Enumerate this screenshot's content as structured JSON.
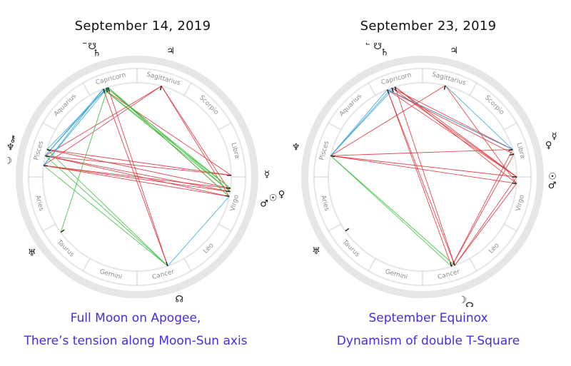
{
  "zodiac_signs": [
    "Aries",
    "Taurus",
    "Gemini",
    "Cancer",
    "Leo",
    "Virgo",
    "Libra",
    "Scorpio",
    "Sagittarius",
    "Capricorn",
    "Aquarius",
    "Pisces"
  ],
  "colors": {
    "ring": "#e6e6e6",
    "dividers": "#cfcfcf",
    "sign_text": "#8c8c8c",
    "tension": "#e0333a",
    "harmony_green": "#3bbf3b",
    "harmony_blue": "#3aa4d8",
    "caption": "#4a2be0"
  },
  "charts": [
    {
      "title": "September 14, 2019",
      "caption_line1": "Full Moon on Apogee,",
      "caption_line2": "There’s tension along Moon-Sun axis",
      "planets": [
        {
          "name": "pluto",
          "glyph": "♇",
          "lon": 291
        },
        {
          "name": "south-node",
          "glyph": "☋",
          "lon": 289
        },
        {
          "name": "saturn",
          "glyph": "♄",
          "lon": 288
        },
        {
          "name": "jupiter",
          "glyph": "♃",
          "lon": 255
        },
        {
          "name": "moon",
          "glyph": "☽",
          "lon": 353
        },
        {
          "name": "neptune",
          "glyph": "♆",
          "lon": 347
        },
        {
          "name": "chiron",
          "glyph": "⚷",
          "lon": 343
        },
        {
          "name": "uranus",
          "glyph": "♅",
          "lon": 36
        },
        {
          "name": "north-node",
          "glyph": "☊",
          "lon": 109
        },
        {
          "name": "mercury",
          "glyph": "☿",
          "lon": 181
        },
        {
          "name": "venus",
          "glyph": "♀",
          "lon": 173
        },
        {
          "name": "sun",
          "glyph": "☉",
          "lon": 171
        },
        {
          "name": "mars",
          "glyph": "♂",
          "lon": 168
        }
      ],
      "aspects": [
        {
          "a": "moon",
          "b": "sun",
          "type": "opposition"
        },
        {
          "a": "moon",
          "b": "mars",
          "type": "opposition"
        },
        {
          "a": "moon",
          "b": "venus",
          "type": "opposition"
        },
        {
          "a": "neptune",
          "b": "sun",
          "type": "opposition"
        },
        {
          "a": "neptune",
          "b": "mars",
          "type": "opposition"
        },
        {
          "a": "neptune",
          "b": "mercury",
          "type": "opposition"
        },
        {
          "a": "chiron",
          "b": "mercury",
          "type": "opposition"
        },
        {
          "a": "chiron",
          "b": "venus",
          "type": "opposition"
        },
        {
          "a": "jupiter",
          "b": "moon",
          "type": "square"
        },
        {
          "a": "jupiter",
          "b": "neptune",
          "type": "square"
        },
        {
          "a": "jupiter",
          "b": "sun",
          "type": "square"
        },
        {
          "a": "jupiter",
          "b": "mars",
          "type": "square"
        },
        {
          "a": "pluto",
          "b": "north-node",
          "type": "opposition"
        },
        {
          "a": "saturn",
          "b": "north-node",
          "type": "opposition"
        },
        {
          "a": "pluto",
          "b": "mercury",
          "type": "square"
        },
        {
          "a": "saturn",
          "b": "mars",
          "type": "square"
        },
        {
          "a": "pluto",
          "b": "moon",
          "type": "sextile"
        },
        {
          "a": "saturn",
          "b": "moon",
          "type": "sextile"
        },
        {
          "a": "south-node",
          "b": "neptune",
          "type": "sextile"
        },
        {
          "a": "pluto",
          "b": "neptune",
          "type": "sextile"
        },
        {
          "a": "saturn",
          "b": "chiron",
          "type": "sextile"
        },
        {
          "a": "north-node",
          "b": "mars",
          "type": "sextile"
        },
        {
          "a": "pluto",
          "b": "sun",
          "type": "trine"
        },
        {
          "a": "pluto",
          "b": "venus",
          "type": "trine"
        },
        {
          "a": "saturn",
          "b": "sun",
          "type": "trine"
        },
        {
          "a": "saturn",
          "b": "mars",
          "type": "trine"
        },
        {
          "a": "south-node",
          "b": "venus",
          "type": "trine"
        },
        {
          "a": "saturn",
          "b": "uranus",
          "type": "trine"
        },
        {
          "a": "neptune",
          "b": "north-node",
          "type": "trine"
        },
        {
          "a": "chiron",
          "b": "north-node",
          "type": "trine"
        },
        {
          "a": "moon",
          "b": "north-node",
          "type": "trine"
        }
      ]
    },
    {
      "title": "September 23, 2019",
      "caption_line1": "September Equinox",
      "caption_line2": "Dynamism of double T-Square",
      "planets": [
        {
          "name": "pluto",
          "glyph": "♇",
          "lon": 292
        },
        {
          "name": "south-node",
          "glyph": "☋",
          "lon": 289
        },
        {
          "name": "saturn",
          "glyph": "♄",
          "lon": 287
        },
        {
          "name": "jupiter",
          "glyph": "♃",
          "lon": 256
        },
        {
          "name": "neptune",
          "glyph": "♆",
          "lon": 347
        },
        {
          "name": "moon",
          "glyph": "☽",
          "lon": 108
        },
        {
          "name": "north-node",
          "glyph": "☊",
          "lon": 110
        },
        {
          "name": "uranus",
          "glyph": "♅",
          "lon": 35
        },
        {
          "name": "mercury",
          "glyph": "☿",
          "lon": 197
        },
        {
          "name": "venus",
          "glyph": "♀",
          "lon": 194
        },
        {
          "name": "sun",
          "glyph": "☉",
          "lon": 180
        },
        {
          "name": "mars",
          "glyph": "♂",
          "lon": 176
        }
      ],
      "aspects": [
        {
          "a": "pluto",
          "b": "mercury",
          "type": "square"
        },
        {
          "a": "pluto",
          "b": "venus",
          "type": "square"
        },
        {
          "a": "pluto",
          "b": "sun",
          "type": "square"
        },
        {
          "a": "saturn",
          "b": "sun",
          "type": "square"
        },
        {
          "a": "saturn",
          "b": "mars",
          "type": "square"
        },
        {
          "a": "south-node",
          "b": "sun",
          "type": "square"
        },
        {
          "a": "south-node",
          "b": "mercury",
          "type": "square"
        },
        {
          "a": "pluto",
          "b": "moon",
          "type": "opposition"
        },
        {
          "a": "saturn",
          "b": "north-node",
          "type": "opposition"
        },
        {
          "a": "pluto",
          "b": "north-node",
          "type": "opposition"
        },
        {
          "a": "moon",
          "b": "mercury",
          "type": "square"
        },
        {
          "a": "moon",
          "b": "venus",
          "type": "square"
        },
        {
          "a": "north-node",
          "b": "sun",
          "type": "square"
        },
        {
          "a": "north-node",
          "b": "mars",
          "type": "square"
        },
        {
          "a": "neptune",
          "b": "sun",
          "type": "opposition"
        },
        {
          "a": "neptune",
          "b": "mars",
          "type": "opposition"
        },
        {
          "a": "jupiter",
          "b": "neptune",
          "type": "square"
        },
        {
          "a": "jupiter",
          "b": "mars",
          "type": "square"
        },
        {
          "a": "neptune",
          "b": "mercury",
          "type": "square"
        },
        {
          "a": "pluto",
          "b": "neptune",
          "type": "sextile"
        },
        {
          "a": "saturn",
          "b": "neptune",
          "type": "sextile"
        },
        {
          "a": "south-node",
          "b": "neptune",
          "type": "sextile"
        },
        {
          "a": "jupiter",
          "b": "mercury",
          "type": "sextile"
        },
        {
          "a": "neptune",
          "b": "moon",
          "type": "trine"
        },
        {
          "a": "neptune",
          "b": "north-node",
          "type": "trine"
        },
        {
          "a": "pluto",
          "b": "mercury",
          "type": "sextile-blue"
        }
      ]
    }
  ]
}
